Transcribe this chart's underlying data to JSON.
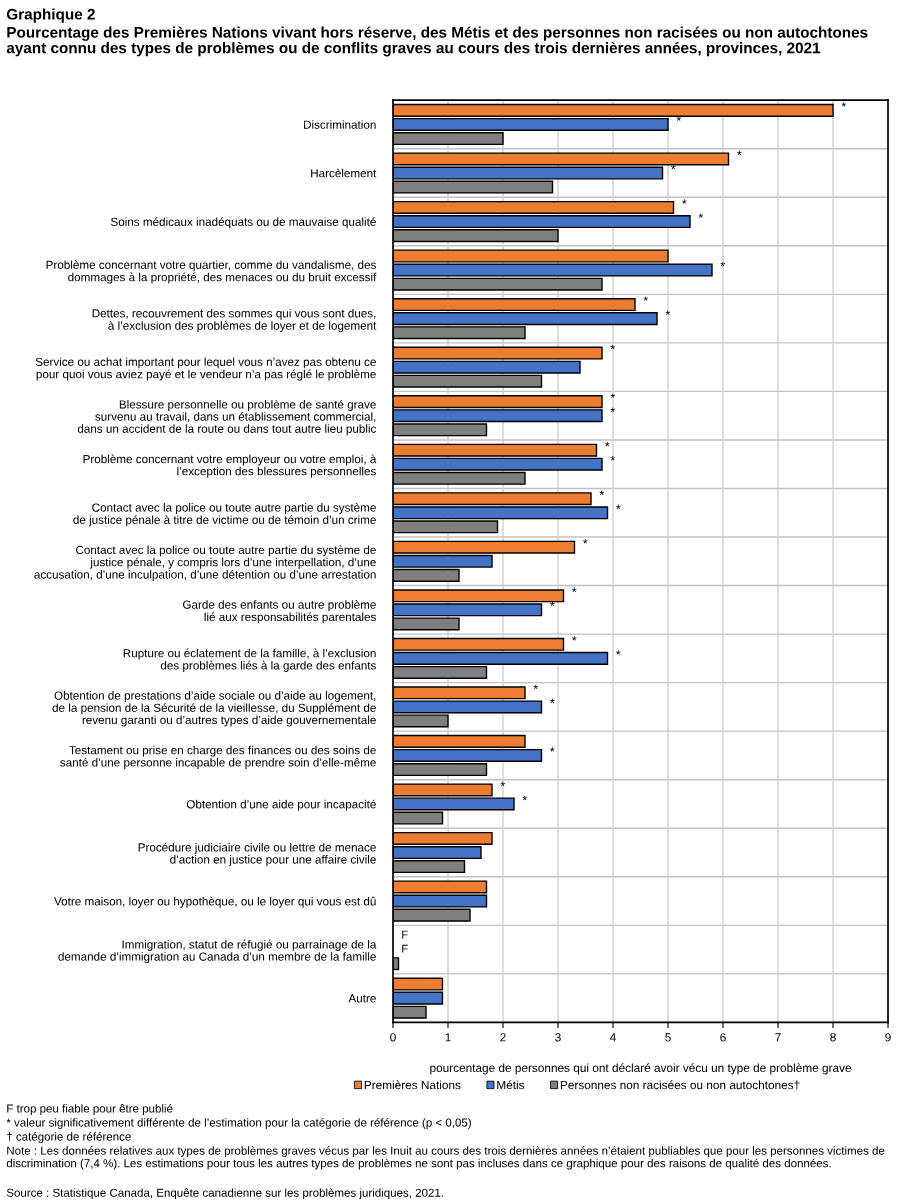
{
  "chart_data": {
    "type": "bar",
    "orientation": "horizontal",
    "title": "Graphique 2",
    "subtitle": "Pourcentage des Premières Nations vivant hors réserve, des Métis et des personnes non racisées ou non autochtones ayant connu des types de problèmes ou de conflits graves au cours des trois dernières années, provinces, 2021",
    "xlabel": "pourcentage de personnes qui ont déclaré avoir vécu un type de problème grave",
    "categories": [
      "Discrimination",
      "Harcèlement",
      "Soins médicaux inadéquats ou de mauvaise qualité",
      "Problème concernant votre quartier, comme du vandalisme, des\ndommages à la propriété, des menaces ou du bruit excessif",
      "Dettes, recouvrement des sommes qui vous sont dues,\nà l’exclusion des problèmes de loyer et de logement",
      "Service ou achat important pour lequel vous n’avez pas obtenu ce\npour quoi vous aviez payé et le vendeur n’a pas réglé le problème",
      "Blessure personnelle ou problème de santé grave\nsurvenu au travail, dans un établissement commercial,\ndans un accident de la route ou dans tout autre lieu public",
      "Problème concernant votre employeur ou votre emploi, à\nl’exception des blessures personnelles",
      "Contact avec la police ou toute autre partie du système\nde justice pénale à titre de victime ou de témoin d’un crime",
      "Contact avec la police ou toute autre partie du système de\njustice pénale, y compris lors d’une interpellation, d’une\naccusation, d’une inculpation, d’une détention ou d’une arrestation",
      "Garde des enfants ou autre problème\nlié aux responsabilités parentales",
      "Rupture ou éclatement de la famille, à l’exclusion\ndes problèmes liés à la garde des enfants",
      "Obtention de prestations d’aide sociale ou d’aide au logement,\nde la pension de la Sécurité de la vieillesse, du Supplément de\nrevenu garanti ou d’autres types d’aide gouvernementale",
      "Testament ou prise en charge des finances ou des soins de\nsanté d’une personne incapable de prendre soin d’elle-même",
      "Obtention d’une aide pour incapacité",
      "Procédure judiciaire civile ou lettre de menace\nd’action en justice pour une affaire civile",
      "Votre maison, loyer ou hypothèque, ou le loyer qui vous est dû",
      "Immigration, statut de réfugié ou parrainage de la\ndemande d’immigration au Canada d’un membre de la famille",
      "Autre"
    ],
    "series": [
      {
        "name": "Premières Nations",
        "color": "#ed7d31",
        "values": [
          8.0,
          6.1,
          5.1,
          5.0,
          4.4,
          3.8,
          3.8,
          3.7,
          3.6,
          3.3,
          3.1,
          3.1,
          2.4,
          2.4,
          1.8,
          1.8,
          1.7,
          null,
          0.9
        ],
        "value_labels": [
          "*",
          "*",
          "*",
          null,
          "*",
          "*",
          "*",
          "*",
          "*",
          "*",
          "*",
          "*",
          "*",
          null,
          "*",
          null,
          null,
          "F",
          null
        ]
      },
      {
        "name": "Métis",
        "color": "#4472c4",
        "values": [
          5.0,
          4.9,
          5.4,
          5.8,
          4.8,
          3.4,
          3.8,
          3.8,
          3.9,
          1.8,
          2.7,
          3.9,
          2.7,
          2.7,
          2.2,
          1.6,
          1.7,
          null,
          0.9
        ],
        "value_labels": [
          "*",
          "*",
          "*",
          "*",
          "*",
          null,
          "*",
          "*",
          "*",
          null,
          "*",
          "*",
          "*",
          "*",
          "*",
          null,
          null,
          "F",
          null
        ]
      },
      {
        "name": "Personnes non racisées ou non autochtones†",
        "color": "#7f7f7f",
        "values": [
          2.0,
          2.9,
          3.0,
          3.8,
          2.4,
          2.7,
          1.7,
          2.4,
          1.9,
          1.2,
          1.2,
          1.7,
          1.0,
          1.7,
          0.9,
          1.3,
          1.4,
          0.1,
          0.6
        ]
      }
    ],
    "xlim": [
      0,
      9
    ],
    "xticks": [
      0,
      1,
      2,
      3,
      4,
      5,
      6,
      7,
      8,
      9
    ],
    "grid": true,
    "legend": "bottom",
    "annotations": [
      "F trop peu fiable pour être publié",
      "* valeur significativement différente de l’estimation pour la catégorie de référence (p < 0,05)",
      "† catégorie de référence",
      "Note : Les données relatives aux types de problèmes graves vécus par les Inuit au cours des trois dernières années n’étaient publiables que pour les personnes victimes de discrimination (7,4 %). Les estimations pour tous les autres types de problèmes ne sont pas incluses dans ce graphique pour des raisons de qualité des données.",
      "Source : Statistique Canada, Enquête canadienne sur les problèmes juridiques, 2021."
    ]
  }
}
